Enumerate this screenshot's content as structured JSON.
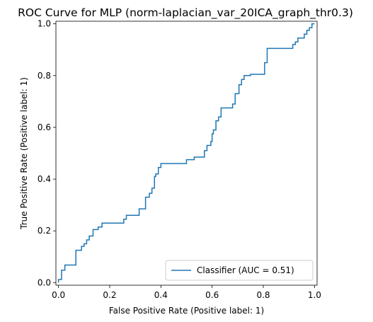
{
  "chart_data": {
    "type": "line",
    "title": "ROC Curve for MLP (norm-laplacian_var_20ICA_graph_thr0.3)",
    "xlabel": "False Positive Rate (Positive label: 1)",
    "ylabel": "True Positive Rate (Positive label: 1)",
    "xlim": [
      -0.01,
      1.01
    ],
    "ylim": [
      -0.01,
      1.01
    ],
    "xticks": [
      "0.0",
      "0.2",
      "0.4",
      "0.6",
      "0.8",
      "1.0"
    ],
    "yticks": [
      "0.0",
      "0.2",
      "0.4",
      "0.6",
      "0.8",
      "1.0"
    ],
    "grid": false,
    "legend_position": "lower-right",
    "series": [
      {
        "name": "Classifier (AUC = 0.51)",
        "color": "#1f77b4",
        "x": [
          0.0,
          0.0,
          0.012,
          0.012,
          0.025,
          0.025,
          0.037,
          0.037,
          0.068,
          0.068,
          0.09,
          0.09,
          0.1,
          0.1,
          0.11,
          0.11,
          0.12,
          0.12,
          0.135,
          0.135,
          0.155,
          0.155,
          0.17,
          0.17,
          0.255,
          0.255,
          0.265,
          0.265,
          0.315,
          0.315,
          0.34,
          0.34,
          0.355,
          0.355,
          0.365,
          0.365,
          0.375,
          0.375,
          0.38,
          0.38,
          0.39,
          0.39,
          0.4,
          0.4,
          0.5,
          0.5,
          0.53,
          0.53,
          0.57,
          0.57,
          0.58,
          0.58,
          0.595,
          0.595,
          0.6,
          0.6,
          0.605,
          0.605,
          0.615,
          0.615,
          0.625,
          0.625,
          0.635,
          0.635,
          0.68,
          0.68,
          0.69,
          0.69,
          0.705,
          0.705,
          0.715,
          0.715,
          0.725,
          0.725,
          0.75,
          0.75,
          0.805,
          0.805,
          0.815,
          0.815,
          0.915,
          0.915,
          0.925,
          0.925,
          0.935,
          0.935,
          0.96,
          0.96,
          0.97,
          0.97,
          0.98,
          0.98,
          0.99,
          0.99,
          1.0,
          1.0
        ],
        "y": [
          0.0,
          0.012,
          0.012,
          0.048,
          0.048,
          0.068,
          0.068,
          0.068,
          0.068,
          0.125,
          0.125,
          0.14,
          0.14,
          0.15,
          0.15,
          0.165,
          0.165,
          0.18,
          0.18,
          0.205,
          0.205,
          0.215,
          0.215,
          0.23,
          0.23,
          0.245,
          0.245,
          0.26,
          0.26,
          0.285,
          0.285,
          0.33,
          0.33,
          0.345,
          0.345,
          0.365,
          0.365,
          0.41,
          0.41,
          0.42,
          0.42,
          0.445,
          0.445,
          0.46,
          0.46,
          0.475,
          0.475,
          0.485,
          0.485,
          0.51,
          0.51,
          0.53,
          0.53,
          0.545,
          0.545,
          0.575,
          0.575,
          0.59,
          0.59,
          0.625,
          0.625,
          0.64,
          0.64,
          0.675,
          0.675,
          0.69,
          0.69,
          0.73,
          0.73,
          0.765,
          0.765,
          0.785,
          0.785,
          0.8,
          0.8,
          0.805,
          0.805,
          0.85,
          0.85,
          0.905,
          0.905,
          0.92,
          0.92,
          0.93,
          0.93,
          0.945,
          0.945,
          0.96,
          0.96,
          0.975,
          0.975,
          0.985,
          0.985,
          1.0,
          1.0,
          1.0
        ]
      }
    ]
  }
}
